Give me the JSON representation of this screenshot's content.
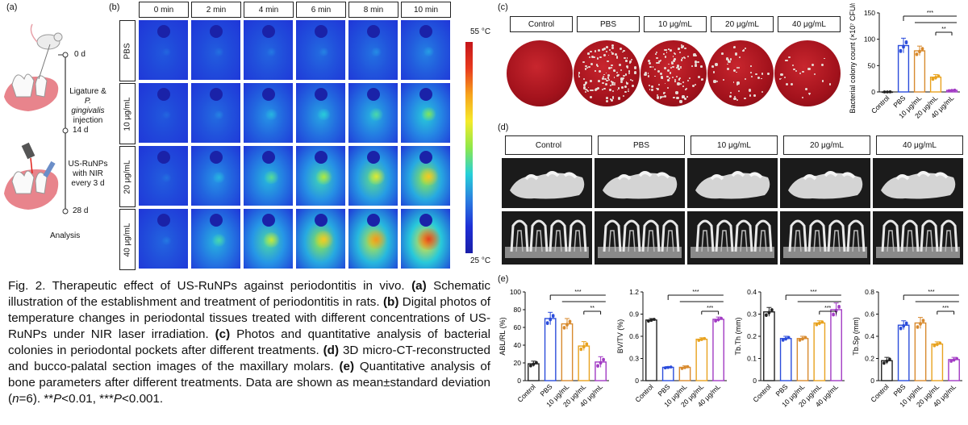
{
  "panel_labels": {
    "a": "(a)",
    "b": "(b)",
    "c": "(c)",
    "d": "(d)",
    "e": "(e)"
  },
  "timeline": {
    "d0": "0 d",
    "d14": "14 d",
    "d28": "28 d",
    "step1_line1": "Ligature &",
    "step1_line2": "P. gingivalis",
    "step1_line3": "injection",
    "step2_line1": "US-RuNPs",
    "step2_line2": "with NIR",
    "step2_line3": "every 3 d",
    "analysis": "Analysis"
  },
  "thermal": {
    "times": [
      "0 min",
      "2 min",
      "4 min",
      "6 min",
      "8 min",
      "10 min"
    ],
    "groups": [
      "PBS",
      "10 μg/mL",
      "20 μg/mL",
      "40 μg/mL"
    ],
    "scale_max": "55 °C",
    "scale_min": "25 °C",
    "heat_levels": [
      [
        0.1,
        0.12,
        0.14,
        0.16,
        0.18,
        0.22
      ],
      [
        0.1,
        0.16,
        0.28,
        0.34,
        0.4,
        0.48
      ],
      [
        0.12,
        0.28,
        0.42,
        0.55,
        0.62,
        0.72
      ],
      [
        0.14,
        0.4,
        0.58,
        0.72,
        0.82,
        0.95
      ]
    ],
    "colors": {
      "cold": "#1e2fd6",
      "hot": "#e0201a"
    }
  },
  "plates": {
    "labels": [
      "Control",
      "PBS",
      "10 μg/mL",
      "20 μg/mL",
      "40 μg/mL"
    ],
    "colony_density": [
      0,
      0.95,
      0.85,
      0.35,
      0.18
    ]
  },
  "ct": {
    "labels": [
      "Control",
      "PBS",
      "10 μg/mL",
      "20 μg/mL",
      "40 μg/mL"
    ]
  },
  "group_colors": [
    "#222222",
    "#2b4cdb",
    "#d88a2e",
    "#e8a21e",
    "#a23bc4"
  ],
  "chart_data": [
    {
      "type": "bar",
      "ylabel": "Bacterial colony count (×10⁷ CFU/mL)",
      "categories": [
        "Control",
        "PBS",
        "10 μg/mL",
        "20 μg/mL",
        "40 μg/mL"
      ],
      "values": [
        0,
        88,
        78,
        28,
        3
      ],
      "errors": [
        0.5,
        14,
        9,
        5,
        1
      ],
      "ylim": [
        0,
        150
      ],
      "yticks": [
        0,
        50,
        100,
        150
      ],
      "sig": [
        "***",
        "**"
      ]
    },
    {
      "type": "bar",
      "ylabel": "ABL/RL (%)",
      "categories": [
        "Control",
        "PBS",
        "10 μg/mL",
        "20 μg/mL",
        "40 μg/mL"
      ],
      "values": [
        19,
        70,
        64,
        39,
        21
      ],
      "errors": [
        3,
        7,
        6,
        5,
        6
      ],
      "ylim": [
        0,
        100
      ],
      "yticks": [
        0,
        20,
        40,
        60,
        80,
        100
      ],
      "sig": [
        "***",
        "**"
      ]
    },
    {
      "type": "bar",
      "ylabel": "BV/TV (%)",
      "categories": [
        "Control",
        "PBS",
        "10 μg/mL",
        "20 μg/mL",
        "40 μg/mL"
      ],
      "values": [
        0.82,
        0.18,
        0.18,
        0.56,
        0.83
      ],
      "errors": [
        0.02,
        0.01,
        0.02,
        0.02,
        0.03
      ],
      "ylim": [
        0,
        1.2
      ],
      "yticks": [
        0,
        0.3,
        0.6,
        0.9,
        1.2
      ],
      "sig": [
        "***",
        "***"
      ]
    },
    {
      "type": "bar",
      "ylabel": "Tb.Th (mm)",
      "categories": [
        "Control",
        "PBS",
        "10 μg/mL",
        "20 μg/mL",
        "40 μg/mL"
      ],
      "values": [
        0.31,
        0.19,
        0.19,
        0.26,
        0.32
      ],
      "errors": [
        0.02,
        0.01,
        0.01,
        0.01,
        0.03
      ],
      "ylim": [
        0,
        0.4
      ],
      "yticks": [
        0,
        0.1,
        0.2,
        0.3,
        0.4
      ],
      "sig": [
        "***",
        "***"
      ]
    },
    {
      "type": "bar",
      "ylabel": "Tb.Sp (mm)",
      "categories": [
        "Control",
        "PBS",
        "10 μg/mL",
        "20 μg/mL",
        "40 μg/mL"
      ],
      "values": [
        0.18,
        0.5,
        0.52,
        0.33,
        0.19
      ],
      "errors": [
        0.03,
        0.04,
        0.05,
        0.02,
        0.02
      ],
      "ylim": [
        0,
        0.8
      ],
      "yticks": [
        0,
        0.2,
        0.4,
        0.6,
        0.8
      ],
      "sig": [
        "***",
        "***"
      ]
    }
  ],
  "caption": {
    "t1": "Fig. 2. Therapeutic effect of US-RuNPs against periodontitis in vivo. ",
    "b_a": "(a)",
    "t2": " Schematic illustration of the establishment and treatment of periodontitis in rats. ",
    "b_b": "(b)",
    "t3": " Digital photos of temperature changes in periodontal tissues treated with different concentrations of US-RuNPs under NIR laser irradiation. ",
    "b_c": "(c)",
    "t4": " Photos and quantitative analysis of bacterial colonies in periodontal pockets after different treatments. ",
    "b_d": "(d)",
    "t5": " 3D micro-CT-reconstructed and bucco-palatal section images of the maxillary molars. ",
    "b_e": "(e)",
    "t6": " Quantitative analysis of bone parameters after different treatments. Data are shown as mean±standard deviation (",
    "n": "n",
    "t7": "=6). **",
    "p1": "P",
    "t8": "<0.01, ***",
    "p2": "P",
    "t9": "<0.001."
  }
}
